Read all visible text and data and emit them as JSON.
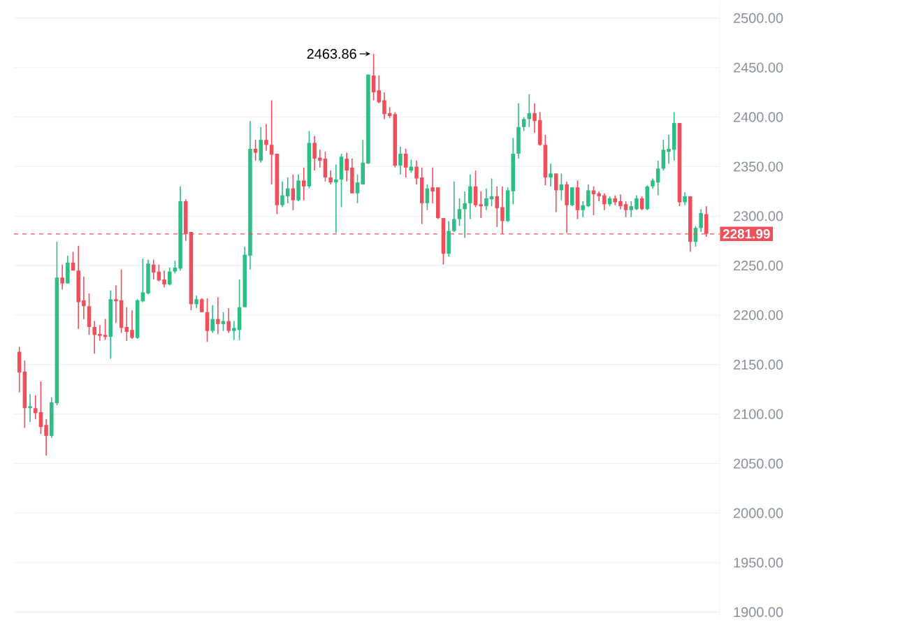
{
  "chart_data": {
    "type": "candlestick",
    "categories": [
      null,
      null,
      null,
      null,
      null,
      null,
      null,
      null,
      null,
      null,
      null,
      null,
      null,
      null,
      null,
      null,
      null,
      null,
      null,
      null,
      null,
      null,
      null,
      null,
      null,
      null,
      null,
      null,
      null,
      null,
      null,
      null,
      null,
      null,
      null,
      null,
      null,
      null,
      null,
      null,
      null,
      null,
      null,
      null,
      null,
      null,
      null,
      null,
      null,
      null,
      null,
      null,
      null,
      null,
      null,
      null,
      null,
      null,
      null,
      null,
      null,
      null,
      null,
      null,
      null,
      null,
      null,
      null,
      null,
      null,
      null,
      null,
      null,
      null,
      null,
      null,
      null,
      null,
      null,
      null,
      null,
      null,
      null,
      null,
      null,
      null,
      null,
      null,
      null,
      null,
      null,
      null,
      null,
      null,
      null,
      null,
      null,
      null,
      null,
      null,
      null,
      null,
      null,
      null,
      null,
      null,
      null,
      null,
      null,
      null,
      null,
      null,
      null,
      null,
      null,
      null,
      null,
      null,
      null,
      null,
      null,
      null,
      null,
      null,
      null,
      null,
      null,
      null,
      null
    ],
    "ohlc": [
      [
        2163,
        2168,
        2122,
        2142
      ],
      [
        2143,
        2154,
        2086,
        2106
      ],
      [
        2106,
        2120,
        2092,
        2108
      ],
      [
        2106,
        2119,
        2095,
        2101
      ],
      [
        2102,
        2133,
        2080,
        2087
      ],
      [
        2089,
        2095,
        2058,
        2078
      ],
      [
        2078,
        2117,
        2076,
        2112
      ],
      [
        2111,
        2274,
        2109,
        2238
      ],
      [
        2238,
        2251,
        2226,
        2232
      ],
      [
        2232,
        2260,
        2232,
        2253
      ],
      [
        2253,
        2264,
        2245,
        2245
      ],
      [
        2245,
        2270,
        2186,
        2213
      ],
      [
        2215,
        2239,
        2196,
        2209
      ],
      [
        2209,
        2222,
        2180,
        2188
      ],
      [
        2188,
        2194,
        2161,
        2180
      ],
      [
        2181,
        2190,
        2174,
        2179
      ],
      [
        2180,
        2196,
        2175,
        2178
      ],
      [
        2178,
        2225,
        2156,
        2216
      ],
      [
        2216,
        2230,
        2192,
        2214
      ],
      [
        2215,
        2246,
        2182,
        2187
      ],
      [
        2188,
        2208,
        2174,
        2183
      ],
      [
        2185,
        2205,
        2176,
        2177
      ],
      [
        2177,
        2216,
        2176,
        2215
      ],
      [
        2214,
        2257,
        2213,
        2223
      ],
      [
        2222,
        2256,
        2221,
        2252
      ],
      [
        2251,
        2256,
        2236,
        2243
      ],
      [
        2244,
        2251,
        2234,
        2235
      ],
      [
        2236,
        2245,
        2228,
        2231
      ],
      [
        2231,
        2248,
        2230,
        2244
      ],
      [
        2244,
        2255,
        2242,
        2248
      ],
      [
        2247,
        2330,
        2245,
        2315
      ],
      [
        2315,
        2317,
        2275,
        2282
      ],
      [
        2284,
        2284,
        2205,
        2211
      ],
      [
        2211,
        2220,
        2207,
        2216
      ],
      [
        2216,
        2217,
        2203,
        2203
      ],
      [
        2203,
        2217,
        2173,
        2184
      ],
      [
        2184,
        2210,
        2182,
        2196
      ],
      [
        2196,
        2218,
        2181,
        2191
      ],
      [
        2191,
        2203,
        2184,
        2194
      ],
      [
        2194,
        2207,
        2182,
        2184
      ],
      [
        2184,
        2194,
        2175,
        2187
      ],
      [
        2185,
        2236,
        2175,
        2208
      ],
      [
        2208,
        2269,
        2208,
        2261
      ],
      [
        2260,
        2396,
        2246,
        2368
      ],
      [
        2368,
        2377,
        2356,
        2364
      ],
      [
        2356,
        2390,
        2354,
        2377
      ],
      [
        2377,
        2393,
        2366,
        2372
      ],
      [
        2372,
        2417,
        2332,
        2362
      ],
      [
        2363,
        2363,
        2302,
        2311
      ],
      [
        2311,
        2335,
        2309,
        2321
      ],
      [
        2320,
        2339,
        2313,
        2328
      ],
      [
        2328,
        2342,
        2306,
        2316
      ],
      [
        2316,
        2342,
        2315,
        2336
      ],
      [
        2336,
        2349,
        2316,
        2330
      ],
      [
        2330,
        2386,
        2328,
        2374
      ],
      [
        2374,
        2381,
        2346,
        2358
      ],
      [
        2359,
        2367,
        2349,
        2356
      ],
      [
        2358,
        2365,
        2335,
        2339
      ],
      [
        2339,
        2346,
        2332,
        2334
      ],
      [
        2334,
        2352,
        2283,
        2337
      ],
      [
        2337,
        2363,
        2309,
        2360
      ],
      [
        2358,
        2364,
        2335,
        2346
      ],
      [
        2349,
        2358,
        2323,
        2323
      ],
      [
        2323,
        2342,
        2313,
        2334
      ],
      [
        2332,
        2377,
        2332,
        2354
      ],
      [
        2353,
        2443,
        2353,
        2443
      ],
      [
        2442,
        2463.86,
        2417,
        2425
      ],
      [
        2427,
        2442,
        2414,
        2415
      ],
      [
        2417,
        2425,
        2398,
        2403
      ],
      [
        2404,
        2410,
        2399,
        2401
      ],
      [
        2403,
        2405,
        2349,
        2351
      ],
      [
        2351,
        2370,
        2342,
        2363
      ],
      [
        2363,
        2368,
        2339,
        2349
      ],
      [
        2346,
        2357,
        2344,
        2350
      ],
      [
        2350,
        2356,
        2332,
        2338
      ],
      [
        2339,
        2349,
        2292,
        2313
      ],
      [
        2313,
        2332,
        2306,
        2328
      ],
      [
        2329,
        2349,
        2313,
        2325
      ],
      [
        2329,
        2329,
        2297,
        2298
      ],
      [
        2298,
        2298,
        2251,
        2262
      ],
      [
        2262,
        2295,
        2259,
        2285
      ],
      [
        2285,
        2335,
        2284,
        2297
      ],
      [
        2297,
        2318,
        2290,
        2307
      ],
      [
        2307,
        2325,
        2278,
        2313
      ],
      [
        2313,
        2342,
        2297,
        2330
      ],
      [
        2330,
        2346,
        2309,
        2311
      ],
      [
        2312,
        2325,
        2298,
        2310
      ],
      [
        2310,
        2328,
        2306,
        2318
      ],
      [
        2317,
        2338,
        2310,
        2320
      ],
      [
        2320,
        2330,
        2289,
        2308
      ],
      [
        2309,
        2330,
        2282,
        2295
      ],
      [
        2295,
        2329,
        2294,
        2326
      ],
      [
        2325,
        2379,
        2312,
        2363
      ],
      [
        2363,
        2414,
        2358,
        2390
      ],
      [
        2390,
        2400,
        2386,
        2398
      ],
      [
        2398,
        2423,
        2390,
        2404
      ],
      [
        2404,
        2414,
        2384,
        2396
      ],
      [
        2397,
        2405,
        2371,
        2372
      ],
      [
        2372,
        2382,
        2331,
        2339
      ],
      [
        2339,
        2353,
        2330,
        2343
      ],
      [
        2343,
        2343,
        2304,
        2326
      ],
      [
        2326,
        2343,
        2316,
        2332
      ],
      [
        2332,
        2335,
        2283,
        2311
      ],
      [
        2311,
        2329,
        2310,
        2329
      ],
      [
        2329,
        2336,
        2297,
        2306
      ],
      [
        2306,
        2315,
        2299,
        2311
      ],
      [
        2310,
        2332,
        2309,
        2326
      ],
      [
        2326,
        2330,
        2301,
        2322
      ],
      [
        2323,
        2325,
        2315,
        2320
      ],
      [
        2321,
        2323,
        2306,
        2312
      ],
      [
        2312,
        2320,
        2310,
        2318
      ],
      [
        2318,
        2321,
        2311,
        2314
      ],
      [
        2315,
        2322,
        2307,
        2310
      ],
      [
        2312,
        2315,
        2299,
        2306
      ],
      [
        2306,
        2315,
        2299,
        2310
      ],
      [
        2307,
        2321,
        2306,
        2318
      ],
      [
        2318,
        2320,
        2306,
        2307
      ],
      [
        2307,
        2331,
        2306,
        2330
      ],
      [
        2330,
        2338,
        2328,
        2336
      ],
      [
        2334,
        2356,
        2321,
        2348
      ],
      [
        2348,
        2377,
        2346,
        2367
      ],
      [
        2365,
        2382,
        2353,
        2368
      ],
      [
        2367,
        2405,
        2356,
        2394
      ],
      [
        2394,
        2394,
        2310,
        2314
      ],
      [
        2314,
        2324,
        2311,
        2320
      ],
      [
        2320,
        2320,
        2264,
        2274
      ],
      [
        2274,
        2290,
        2269,
        2288
      ],
      [
        2288,
        2307,
        2284,
        2303
      ],
      [
        2302,
        2310,
        2279,
        2281.99
      ]
    ],
    "colors": [
      "#ef4f5a",
      "#ef4f5a",
      "#2ebd85",
      "#ef4f5a",
      "#ef4f5a",
      "#ef4f5a",
      "#2ebd85",
      "#2ebd85",
      "#ef4f5a",
      "#2ebd85",
      "#ef4f5a",
      "#ef4f5a",
      "#ef4f5a",
      "#ef4f5a",
      "#ef4f5a",
      "#ef4f5a",
      "#ef4f5a",
      "#2ebd85",
      "#ef4f5a",
      "#ef4f5a",
      "#ef4f5a",
      "#ef4f5a",
      "#2ebd85",
      "#2ebd85",
      "#2ebd85",
      "#ef4f5a",
      "#ef4f5a",
      "#ef4f5a",
      "#2ebd85",
      "#2ebd85",
      "#2ebd85",
      "#ef4f5a",
      "#ef4f5a",
      "#2ebd85",
      "#ef4f5a",
      "#ef4f5a",
      "#2ebd85",
      "#ef4f5a",
      "#2ebd85",
      "#ef4f5a",
      "#2ebd85",
      "#2ebd85",
      "#2ebd85",
      "#2ebd85",
      "#ef4f5a",
      "#2ebd85",
      "#ef4f5a",
      "#ef4f5a",
      "#ef4f5a",
      "#2ebd85",
      "#2ebd85",
      "#ef4f5a",
      "#2ebd85",
      "#ef4f5a",
      "#2ebd85",
      "#ef4f5a",
      "#ef4f5a",
      "#ef4f5a",
      "#ef4f5a",
      "#2ebd85",
      "#2ebd85",
      "#ef4f5a",
      "#ef4f5a",
      "#2ebd85",
      "#2ebd85",
      "#2ebd85",
      "#ef4f5a",
      "#ef4f5a",
      "#ef4f5a",
      "#ef4f5a",
      "#ef4f5a",
      "#2ebd85",
      "#ef4f5a",
      "#2ebd85",
      "#ef4f5a",
      "#ef4f5a",
      "#2ebd85",
      "#ef4f5a",
      "#ef4f5a",
      "#ef4f5a",
      "#2ebd85",
      "#2ebd85",
      "#2ebd85",
      "#2ebd85",
      "#2ebd85",
      "#ef4f5a",
      "#ef4f5a",
      "#2ebd85",
      "#2ebd85",
      "#ef4f5a",
      "#ef4f5a",
      "#2ebd85",
      "#2ebd85",
      "#2ebd85",
      "#2ebd85",
      "#2ebd85",
      "#ef4f5a",
      "#ef4f5a",
      "#ef4f5a",
      "#2ebd85",
      "#ef4f5a",
      "#2ebd85",
      "#ef4f5a",
      "#2ebd85",
      "#ef4f5a",
      "#2ebd85",
      "#2ebd85",
      "#ef4f5a",
      "#ef4f5a",
      "#ef4f5a",
      "#2ebd85",
      "#ef4f5a",
      "#ef4f5a",
      "#ef4f5a",
      "#2ebd85",
      "#2ebd85",
      "#ef4f5a",
      "#2ebd85",
      "#2ebd85",
      "#2ebd85",
      "#2ebd85",
      "#2ebd85",
      "#2ebd85",
      "#ef4f5a",
      "#2ebd85",
      "#ef4f5a",
      "#2ebd85",
      "#2ebd85",
      "#ef4f5a"
    ],
    "ylim": [
      1897,
      2518
    ],
    "yticks": [
      {
        "value": 1900,
        "label": "1900.00"
      },
      {
        "value": 1950,
        "label": "1950.00"
      },
      {
        "value": 2000,
        "label": "2000.00"
      },
      {
        "value": 2050,
        "label": "2050.00"
      },
      {
        "value": 2100,
        "label": "2100.00"
      },
      {
        "value": 2150,
        "label": "2150.00"
      },
      {
        "value": 2200,
        "label": "2200.00"
      },
      {
        "value": 2250,
        "label": "2250.00"
      },
      {
        "value": 2300,
        "label": "2300.00"
      },
      {
        "value": 2350,
        "label": "2350.00"
      },
      {
        "value": 2400,
        "label": "2400.00"
      },
      {
        "value": 2450,
        "label": "2450.00"
      },
      {
        "value": 2500,
        "label": "2500.00"
      }
    ],
    "grid": "y",
    "ref_lines": [
      {
        "axis": "y",
        "value": 2281.99,
        "label": "2281.99",
        "color": "#ef4f5a",
        "line_style": "dashed"
      }
    ],
    "annotations": [
      "2463.86"
    ]
  }
}
